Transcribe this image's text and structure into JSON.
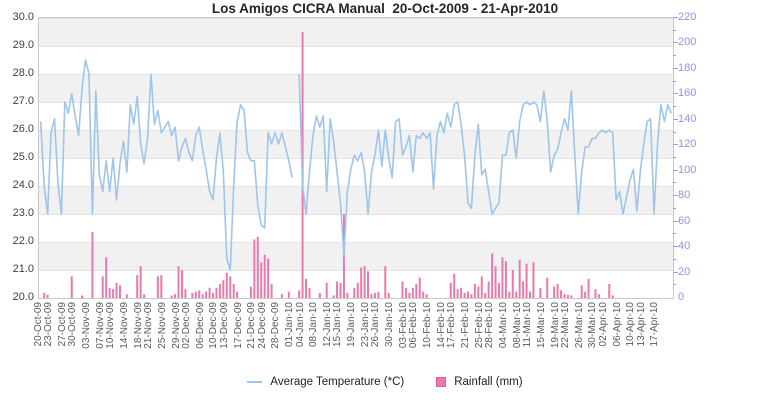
{
  "title": "Los Amigos CICRA Manual  20-Oct-2009 - 21-Apr-2010",
  "legend": {
    "temperature_label": "Average Temperature (*C)",
    "rainfall_label": "Rainfall (mm)"
  },
  "chart_data": {
    "type": "line+bar",
    "title": "Los Amigos CICRA Manual  20-Oct-2009 - 21-Apr-2010",
    "x_is_daily_series": true,
    "x_start_date": "20-Oct-2009",
    "x_end_date": "21-Apr-2010",
    "num_days": 184,
    "left_axis": {
      "label_implicit": "Temperature (*C)",
      "min": 20.0,
      "max": 30.0,
      "step": 1.0,
      "tick_format": "0.0"
    },
    "right_axis": {
      "label_implicit": "Rainfall (mm)",
      "min": 0,
      "max": 220,
      "major_step": 20,
      "minor_step": 10
    },
    "grid": {
      "alternating_bands": true,
      "gray_band_degree_pairs": [
        "30-29",
        "28-27",
        "26-25",
        "24-23",
        "22-21"
      ]
    },
    "legend_position": "bottom-center",
    "x_tick_labels": [
      [
        "20-Oct-09",
        0
      ],
      [
        "23-Oct-09",
        3
      ],
      [
        "27-Oct-09",
        7
      ],
      [
        "30-Oct-09",
        10
      ],
      [
        "03-Nov-09",
        14
      ],
      [
        "07-Nov-09",
        18
      ],
      [
        "10-Nov-09",
        21
      ],
      [
        "14-Nov-09",
        25
      ],
      [
        "18-Nov-09",
        29
      ],
      [
        "21-Nov-09",
        32
      ],
      [
        "25-Nov-09",
        36
      ],
      [
        "29-Nov-09",
        40
      ],
      [
        "02-Dec-09",
        43
      ],
      [
        "06-Dec-09",
        47
      ],
      [
        "10-Dec-09",
        51
      ],
      [
        "13-Dec-09",
        54
      ],
      [
        "17-Dec-09",
        58
      ],
      [
        "21-Dec-09",
        62
      ],
      [
        "24-Dec-09",
        65
      ],
      [
        "28-Dec-09",
        69
      ],
      [
        "01-Jan-10",
        73
      ],
      [
        "04-Jan-10",
        76
      ],
      [
        "08-Jan-10",
        80
      ],
      [
        "12-Jan-10",
        84
      ],
      [
        "15-Jan-10",
        87
      ],
      [
        "19-Jan-10",
        91
      ],
      [
        "23-Jan-10",
        95
      ],
      [
        "26-Jan-10",
        98
      ],
      [
        "30-Jan-10",
        102
      ],
      [
        "03-Feb-10",
        106
      ],
      [
        "06-Feb-10",
        109
      ],
      [
        "10-Feb-10",
        113
      ],
      [
        "14-Feb-10",
        117
      ],
      [
        "17-Feb-10",
        120
      ],
      [
        "21-Feb-10",
        124
      ],
      [
        "25-Feb-10",
        128
      ],
      [
        "28-Feb-10",
        131
      ],
      [
        "04-Mar-10",
        135
      ],
      [
        "08-Mar-10",
        139
      ],
      [
        "11-Mar-10",
        142
      ],
      [
        "15-Mar-10",
        146
      ],
      [
        "19-Mar-10",
        150
      ],
      [
        "22-Mar-10",
        153
      ],
      [
        "26-Mar-10",
        157
      ],
      [
        "30-Mar-10",
        161
      ],
      [
        "02-Apr-10",
        164
      ],
      [
        "06-Apr-10",
        168
      ],
      [
        "10-Apr-10",
        172
      ],
      [
        "13-Apr-10",
        175
      ],
      [
        "17-Apr-10",
        179
      ]
    ],
    "series": [
      {
        "name": "Average Temperature (*C)",
        "type": "line",
        "axis": "left",
        "values": [
          26.3,
          24.0,
          23.0,
          25.9,
          26.4,
          24.1,
          23.0,
          27.0,
          26.6,
          27.3,
          26.5,
          25.8,
          27.5,
          28.5,
          28.0,
          23.0,
          27.4,
          24.4,
          23.8,
          24.9,
          23.8,
          25.0,
          23.5,
          24.8,
          25.6,
          24.5,
          26.9,
          26.2,
          27.2,
          25.5,
          24.8,
          25.7,
          28.0,
          26.2,
          26.7,
          25.9,
          26.1,
          26.3,
          25.8,
          26.1,
          24.9,
          25.4,
          25.7,
          25.2,
          24.9,
          25.8,
          26.1,
          25.3,
          24.6,
          23.8,
          23.5,
          25.0,
          25.9,
          24.5,
          21.4,
          21.0,
          24.0,
          26.3,
          26.9,
          26.7,
          25.2,
          24.9,
          24.9,
          23.3,
          22.6,
          22.5,
          25.9,
          25.5,
          25.9,
          25.5,
          25.9,
          25.4,
          24.9,
          24.3,
          null,
          28.0,
          24.0,
          23.0,
          24.5,
          25.8,
          26.5,
          26.1,
          26.5,
          23.8,
          26.4,
          25.6,
          24.5,
          23.4,
          21.5,
          23.8,
          24.6,
          25.1,
          24.9,
          25.2,
          24.5,
          23.0,
          24.5,
          25.1,
          26.0,
          24.7,
          26.0,
          25.0,
          24.3,
          26.3,
          26.4,
          25.1,
          25.4,
          25.8,
          24.5,
          25.8,
          25.7,
          25.9,
          25.7,
          25.9,
          23.9,
          25.8,
          26.3,
          25.9,
          26.6,
          26.1,
          26.9,
          27.0,
          26.2,
          25.1,
          23.4,
          23.2,
          25.1,
          26.2,
          24.4,
          24.6,
          23.8,
          23.0,
          23.2,
          23.4,
          25.1,
          25.1,
          25.9,
          26.0,
          25.0,
          26.3,
          26.9,
          27.0,
          26.9,
          27.0,
          26.9,
          26.3,
          27.4,
          26.3,
          24.5,
          25.1,
          25.3,
          25.9,
          26.4,
          26.0,
          27.4,
          25.1,
          23.0,
          24.5,
          25.4,
          25.4,
          25.7,
          25.7,
          25.9,
          26.0,
          25.9,
          26.0,
          25.9,
          23.5,
          23.8,
          23.0,
          23.6,
          24.2,
          24.6,
          23.1,
          24.5,
          25.5,
          26.3,
          26.4,
          23.0,
          25.5,
          26.9,
          26.3,
          26.9,
          26.6
        ]
      },
      {
        "name": "Rainfall (mm)",
        "type": "bar",
        "axis": "right",
        "values_by_day_index": {
          "1": 4,
          "2": 2.5,
          "9": 17,
          "12": 2,
          "15": 52,
          "18": 17,
          "19": 32,
          "20": 8,
          "21": 7,
          "22": 12,
          "23": 10,
          "25": 3,
          "28": 18,
          "29": 25,
          "30": 3,
          "34": 17,
          "35": 18,
          "38": 2,
          "39": 3,
          "40": 25,
          "41": 22,
          "42": 7,
          "44": 4,
          "45": 5,
          "46": 6,
          "47": 3,
          "48": 5,
          "49": 8,
          "50": 4,
          "51": 8,
          "52": 11,
          "53": 14,
          "54": 20,
          "55": 17,
          "56": 11,
          "57": 5,
          "61": 9,
          "62": 46,
          "63": 48,
          "64": 28,
          "65": 34,
          "66": 31,
          "67": 11,
          "70": 3,
          "72": 5,
          "75": 6,
          "76": 209,
          "77": 15,
          "78": 8,
          "81": 4,
          "83": 12,
          "85": 2,
          "86": 13,
          "87": 12,
          "88": 66,
          "89": 4,
          "91": 8,
          "92": 12,
          "93": 24,
          "94": 25,
          "95": 21,
          "96": 3,
          "97": 4,
          "98": 5,
          "100": 25,
          "101": 4,
          "105": 13,
          "106": 8,
          "107": 4,
          "108": 8,
          "109": 11,
          "110": 16,
          "111": 5,
          "112": 3,
          "119": 12,
          "120": 19,
          "121": 7,
          "122": 8,
          "123": 4,
          "124": 5,
          "125": 3,
          "126": 11,
          "127": 9,
          "128": 17,
          "129": 4,
          "130": 13,
          "131": 35,
          "132": 25,
          "133": 12,
          "134": 32,
          "135": 29,
          "136": 5,
          "137": 22,
          "138": 5,
          "139": 30,
          "140": 13,
          "141": 27,
          "142": 5,
          "143": 28,
          "145": 8,
          "147": 16,
          "149": 9,
          "150": 11,
          "151": 6,
          "152": 3,
          "153": 2.5,
          "154": 2,
          "157": 10,
          "158": 5,
          "159": 15,
          "161": 7,
          "162": 3,
          "165": 11,
          "166": 2
        }
      }
    ],
    "colors": {
      "temperature_line": "#9fc5ea",
      "rainfall_bar": "#ec79ad",
      "rainfall_bar_border": "#d5619a",
      "right_axis_text": "#9191e8",
      "right_axis_tick": "#9a9ae0",
      "left_axis_text": "#404040",
      "x_axis_text": "#595959",
      "band_gray": "#f1f1f1",
      "grid_line": "#e3e3e3",
      "plot_border": "#c9c9c9",
      "title_color": "#262626"
    }
  }
}
